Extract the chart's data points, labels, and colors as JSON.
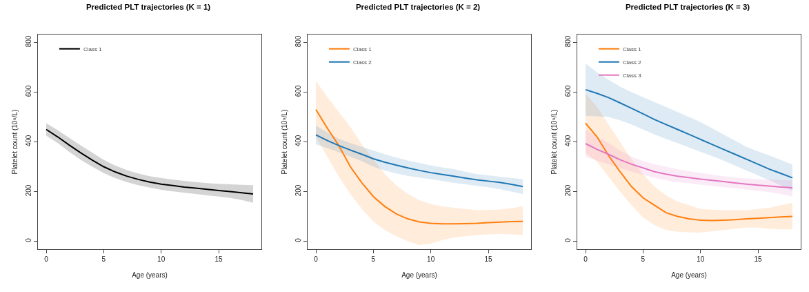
{
  "chart_data": [
    {
      "type": "line",
      "title": "Predicted PLT trajectories (K = 1)",
      "xlabel": "Age (years)",
      "ylabel": "Platelet count (10⁹/L)",
      "x": [
        0,
        1,
        2,
        3,
        4,
        5,
        6,
        7,
        8,
        9,
        10,
        11,
        12,
        13,
        14,
        15,
        16,
        17,
        18
      ],
      "series": [
        {
          "name": "Class 1",
          "color": "#000000",
          "values": [
            450,
            420,
            387,
            356,
            327,
            300,
            279,
            262,
            249,
            238,
            230,
            224,
            218,
            214,
            209,
            204,
            200,
            195,
            190
          ],
          "upper": [
            475,
            447,
            416,
            386,
            357,
            328,
            305,
            287,
            273,
            262,
            255,
            248,
            243,
            238,
            234,
            231,
            229,
            227,
            226
          ],
          "lower": [
            425,
            395,
            360,
            328,
            300,
            274,
            254,
            238,
            226,
            216,
            207,
            201,
            195,
            190,
            185,
            180,
            174,
            166,
            155
          ]
        }
      ],
      "xlim": [
        -0.72,
        18.72
      ],
      "ylim": [
        -32,
        832
      ],
      "xticks": [
        0,
        5,
        10,
        15
      ],
      "yticks": [
        0,
        200,
        400,
        600,
        800
      ],
      "grid": false,
      "legend": "top left",
      "marker": "none",
      "line_style": "solid"
    },
    {
      "type": "line",
      "title": "Predicted PLT trajectories (K = 2)",
      "xlabel": "Age (years)",
      "ylabel": "Platelet count (10⁹/L)",
      "x": [
        0,
        1,
        2,
        3,
        4,
        5,
        6,
        7,
        8,
        9,
        10,
        11,
        12,
        13,
        14,
        15,
        16,
        17,
        18
      ],
      "series": [
        {
          "name": "Class 1",
          "color": "#ff7f0e",
          "values": [
            530,
            455,
            385,
            300,
            235,
            180,
            140,
            110,
            90,
            78,
            72,
            70,
            70,
            71,
            72,
            75,
            77,
            79,
            80
          ],
          "upper": [
            645,
            580,
            520,
            460,
            390,
            330,
            270,
            225,
            190,
            165,
            150,
            140,
            135,
            130,
            125,
            126,
            128,
            133,
            140
          ],
          "lower": [
            420,
            340,
            260,
            190,
            130,
            80,
            45,
            20,
            0,
            -15,
            -10,
            5,
            15,
            20,
            25,
            28,
            30,
            28,
            25
          ]
        },
        {
          "name": "Class 2",
          "color": "#1f77b4",
          "values": [
            428,
            405,
            385,
            367,
            350,
            332,
            318,
            306,
            295,
            285,
            276,
            269,
            262,
            254,
            247,
            242,
            237,
            229,
            220
          ],
          "upper": [
            465,
            438,
            412,
            395,
            380,
            365,
            350,
            337,
            325,
            315,
            305,
            297,
            290,
            280,
            270,
            265,
            260,
            255,
            250
          ],
          "lower": [
            390,
            375,
            358,
            340,
            322,
            300,
            285,
            273,
            263,
            256,
            250,
            242,
            235,
            229,
            223,
            217,
            210,
            200,
            190
          ]
        }
      ],
      "xlim": [
        -0.72,
        18.72
      ],
      "ylim": [
        -32,
        832
      ],
      "xticks": [
        0,
        5,
        10,
        15
      ],
      "yticks": [
        0,
        200,
        400,
        600,
        800
      ],
      "grid": false,
      "legend": "top left",
      "marker": "none",
      "line_style": "solid"
    },
    {
      "type": "line",
      "title": "Predicted PLT trajectories (K = 3)",
      "xlabel": "Age (years)",
      "ylabel": "Platelet count (10⁹/L)",
      "x": [
        0,
        1,
        2,
        3,
        4,
        5,
        6,
        7,
        8,
        9,
        10,
        11,
        12,
        13,
        14,
        15,
        16,
        17,
        18
      ],
      "series": [
        {
          "name": "Class 1",
          "color": "#ff7f0e",
          "values": [
            475,
            420,
            345,
            280,
            220,
            175,
            145,
            115,
            100,
            90,
            85,
            83,
            85,
            87,
            90,
            92,
            95,
            98,
            100
          ],
          "upper": [
            595,
            540,
            470,
            400,
            330,
            270,
            220,
            185,
            160,
            145,
            130,
            127,
            125,
            125,
            125,
            130,
            135,
            145,
            155
          ],
          "lower": [
            355,
            320,
            260,
            200,
            145,
            95,
            65,
            45,
            38,
            36,
            35,
            40,
            45,
            50,
            55,
            55,
            50,
            48,
            48
          ]
        },
        {
          "name": "Class 2",
          "color": "#1f77b4",
          "values": [
            610,
            595,
            578,
            557,
            535,
            513,
            490,
            470,
            450,
            430,
            410,
            390,
            370,
            350,
            330,
            310,
            290,
            273,
            255
          ],
          "upper": [
            715,
            680,
            650,
            622,
            600,
            580,
            560,
            540,
            520,
            500,
            480,
            455,
            430,
            405,
            380,
            362,
            345,
            327,
            308
          ],
          "lower": [
            505,
            503,
            500,
            487,
            470,
            450,
            430,
            412,
            395,
            378,
            360,
            343,
            325,
            305,
            285,
            265,
            245,
            225,
            203
          ]
        },
        {
          "name": "Class 3",
          "color": "#e377c2",
          "values": [
            393,
            370,
            350,
            328,
            310,
            295,
            280,
            270,
            262,
            256,
            250,
            245,
            240,
            235,
            230,
            226,
            222,
            218,
            215
          ],
          "upper": [
            450,
            420,
            395,
            365,
            340,
            323,
            310,
            300,
            290,
            282,
            275,
            268,
            262,
            257,
            253,
            250,
            248,
            246,
            245
          ],
          "lower": [
            340,
            325,
            310,
            295,
            280,
            267,
            255,
            245,
            238,
            233,
            228,
            223,
            218,
            213,
            208,
            203,
            198,
            190,
            180
          ]
        }
      ],
      "xlim": [
        -0.72,
        18.72
      ],
      "ylim": [
        -32,
        832
      ],
      "xticks": [
        0,
        5,
        10,
        15
      ],
      "yticks": [
        0,
        200,
        400,
        600,
        800
      ],
      "grid": false,
      "legend": "top left",
      "marker": "none",
      "line_style": "solid"
    }
  ]
}
